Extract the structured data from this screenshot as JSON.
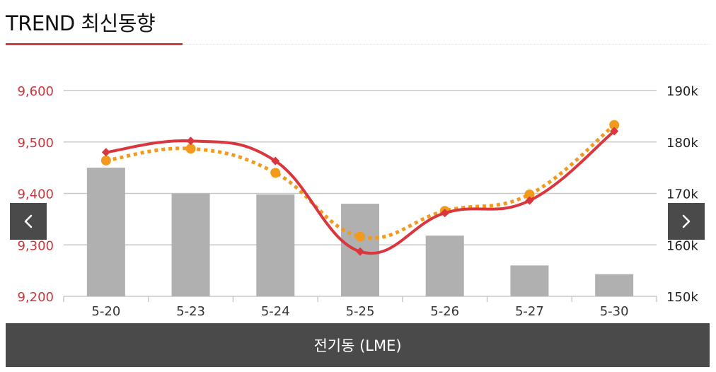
{
  "header": {
    "title": "TREND 최신동향"
  },
  "footer": {
    "label": "전기동 (LME)"
  },
  "nav": {
    "prev_icon": "chevron-left-icon",
    "next_icon": "chevron-right-icon"
  },
  "colors": {
    "price_line": "#d9363e",
    "dotted_line": "#f29a1d",
    "bars": "#b0b0b0",
    "left_axis_text": "#c8373d",
    "right_axis_text": "#222222",
    "grid": "#c8c8c8",
    "footer_bg": "#4a4a4a"
  },
  "chart_data": {
    "type": "bar+line",
    "categories": [
      "5-20",
      "5-23",
      "5-24",
      "5-25",
      "5-26",
      "5-27",
      "5-30"
    ],
    "y_left": {
      "min": 9200,
      "max": 9600,
      "ticks": [
        "9,200",
        "9,300",
        "9,400",
        "9,500",
        "9,600"
      ]
    },
    "y_right": {
      "min": 150000,
      "max": 190000,
      "ticks": [
        "150k",
        "160k",
        "170k",
        "180k",
        "190k"
      ]
    },
    "bars": {
      "axis": "right",
      "values": [
        175000,
        170000,
        169800,
        168000,
        161800,
        156000,
        154300
      ]
    },
    "line_solid": {
      "axis": "left",
      "marker": "diamond",
      "values": [
        9480,
        9502,
        9463,
        9287,
        9362,
        9386,
        9521
      ]
    },
    "line_dotted": {
      "axis": "left",
      "marker": "circle",
      "values": [
        9464,
        9487,
        9440,
        9316,
        9366,
        9398,
        9533
      ]
    },
    "grid": true,
    "legend": "none"
  }
}
